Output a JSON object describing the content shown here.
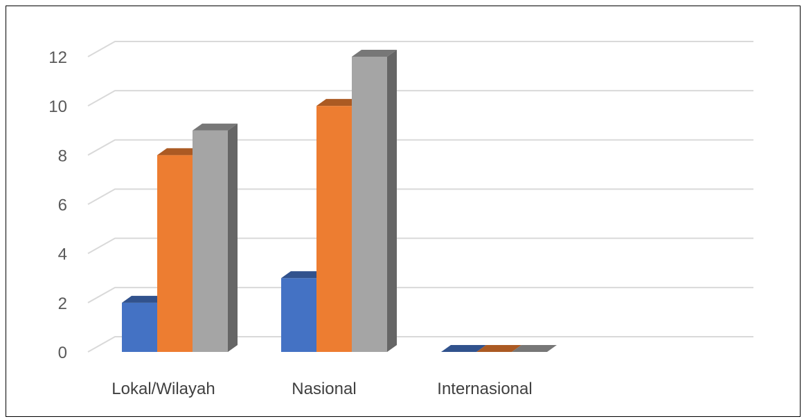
{
  "chart_data": {
    "type": "bar",
    "style": "3d-clustered-column",
    "categories": [
      "Lokal/Wilayah",
      "Nasional",
      "Internasional"
    ],
    "series": [
      {
        "values": [
          2,
          3,
          0
        ],
        "color": "#4472C4"
      },
      {
        "values": [
          8,
          10,
          0
        ],
        "color": "#ED7D31"
      },
      {
        "values": [
          9,
          12,
          0
        ],
        "color": "#A5A5A5"
      }
    ],
    "y_ticks": [
      "0",
      "2",
      "4",
      "6",
      "8",
      "10",
      "12"
    ],
    "ylim": [
      0,
      12
    ],
    "grid": true,
    "legend": "none",
    "title": "",
    "xlabel": "",
    "ylabel": ""
  }
}
